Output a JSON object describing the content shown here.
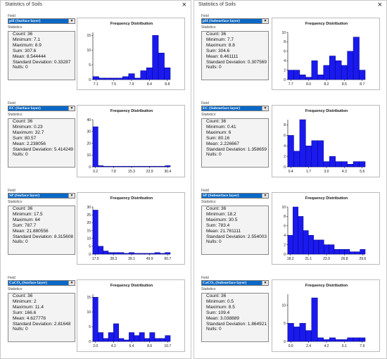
{
  "left_window": {
    "title": "Statistics of Soils",
    "close": "×",
    "panels": [
      {
        "field_label": "Field",
        "field_value": "pH (Surface layer)",
        "dropdown_arrow": "▼",
        "stats_label": "Statistics:",
        "stats": [
          "Count:    36",
          "Minimum:  7.1",
          "Maximum:  8.9",
          "Sum:      307.6",
          "Mean:     8.544444",
          "Standard Deviation: 0.33287",
          "Nulls:    0"
        ],
        "chart_data": {
          "type": "bar",
          "title": "Frequency Distribution",
          "x_ticks": [
            "7.1",
            "7.5",
            "7.9",
            "8.4",
            "8.8"
          ],
          "y_ticks": [
            "0",
            "5",
            "10",
            "15"
          ],
          "ylim": [
            0,
            16
          ],
          "values": [
            1,
            0.5,
            0.5,
            0.5,
            0.5,
            1,
            2,
            0.5,
            3,
            4,
            15,
            9,
            4
          ]
        }
      },
      {
        "field_label": "Field",
        "field_value": "EC (Surface layer)",
        "dropdown_arrow": "▼",
        "stats_label": "Statistics:",
        "stats": [
          "Count:    36",
          "Minimum:  0.23",
          "Maximum:  32.7",
          "Sum:      80.57",
          "Mean:     2.238056",
          "Standard  Deviation: 5.414249",
          "Nulls:    0"
        ],
        "chart_data": {
          "type": "bar",
          "title": "Frequency Distribution",
          "x_ticks": [
            "0.2",
            "7.8",
            "15.3",
            "22.9",
            "30.4"
          ],
          "y_ticks": [
            "0",
            "10",
            "20",
            "30",
            "40"
          ],
          "ylim": [
            0,
            40
          ],
          "values": [
            34,
            1,
            0.5,
            0.5,
            0.5,
            0.5,
            0.5,
            0.5,
            0.5,
            0.5,
            0.5,
            0.5,
            0.5,
            0.5,
            1
          ]
        }
      },
      {
        "field_label": "Field",
        "field_value": "SP (Surface layer)",
        "dropdown_arrow": "▼",
        "stats_label": "Statistics:",
        "stats": [
          "Count:    36",
          "Minimum:  17.5",
          "Maximum:  64",
          "Sum:      787.7",
          "Mean:     21.880556",
          "Standard  Deviation: 8.315608",
          "Nulls:    0"
        ],
        "chart_data": {
          "type": "bar",
          "title": "Frequency Distribution",
          "x_ticks": [
            "17.5",
            "28.3",
            "39.1",
            "49.9",
            "60.7"
          ],
          "y_ticks": [
            "0",
            "5",
            "10",
            "15",
            "20",
            "25",
            "30"
          ],
          "ylim": [
            0,
            30
          ],
          "values": [
            28,
            5,
            2,
            1,
            1,
            1,
            0.5,
            1,
            0.5,
            0.5,
            0.5,
            0.5,
            1,
            0.5,
            1
          ]
        }
      },
      {
        "field_label": "Field",
        "field_value": "CaCO₃ (Surface layer)",
        "dropdown_arrow": "▼",
        "stats_label": "Statistics:",
        "stats": [
          "Count:    36",
          "Minimum:  2",
          "Maximum:  11.4",
          "Sum:      166.6",
          "Mean:     4.627778",
          "Standard  Deviation: 2.81648",
          "Nulls:    0"
        ],
        "chart_data": {
          "type": "bar",
          "title": "Frequency Distribution",
          "x_ticks": [
            "2.0",
            "4.2",
            "6.4",
            "8.6",
            "10.7"
          ],
          "y_ticks": [
            "0",
            "5",
            "10",
            "15"
          ],
          "ylim": [
            0,
            16
          ],
          "values": [
            15,
            3,
            1,
            3,
            6,
            1,
            0.5,
            3,
            2,
            3,
            1,
            3,
            1,
            1,
            2
          ]
        }
      }
    ]
  },
  "right_window": {
    "title": "Statistics of Soils",
    "close": "×",
    "panels": [
      {
        "field_label": "Field",
        "field_value": "pH (Subsurface layer)",
        "dropdown_arrow": "▼",
        "stats_label": "Statistics:",
        "stats": [
          "Count:    36",
          "Minimum:  7.7",
          "Maximum:  8.8",
          "Sum:      304.6",
          "Mean:     8.461111",
          "Standard Deviation: 0.307569",
          "Nulls:    0"
        ],
        "chart_data": {
          "type": "bar",
          "title": "Frequency Distribution",
          "x_ticks": [
            "7.7",
            "8.0",
            "8.2",
            "8.5",
            "8.7"
          ],
          "y_ticks": [
            "0",
            "2",
            "4",
            "6",
            "8",
            "10"
          ],
          "ylim": [
            0,
            10
          ],
          "values": [
            2,
            2,
            1,
            0.5,
            4,
            1,
            3,
            5,
            4,
            3,
            6,
            9,
            2
          ]
        }
      },
      {
        "field_label": "Field",
        "field_value": "EC (Subsurface layer)",
        "dropdown_arrow": "▼",
        "stats_label": "Statistics:",
        "stats": [
          "Count:    36",
          "Minimum:  0.41",
          "Maximum:  6",
          "Sum:      80.16",
          "Mean:     2.226667",
          "Standard  Deviation: 1.358659",
          "Nulls:    0"
        ],
        "chart_data": {
          "type": "bar",
          "title": "Frequency Distribution",
          "x_ticks": [
            "0.4",
            "1.7",
            "3.0",
            "4.3",
            "5.6"
          ],
          "y_ticks": [
            "0",
            "2",
            "4",
            "6",
            "8"
          ],
          "ylim": [
            0,
            9
          ],
          "values": [
            6,
            3,
            9,
            4,
            5,
            5,
            1,
            2,
            1,
            1,
            0.5,
            1,
            1
          ]
        }
      },
      {
        "field_label": "Field",
        "field_value": "SP (Subsurface layer)",
        "dropdown_arrow": "▼",
        "stats_label": "Statistics:",
        "stats": [
          "Count:    36",
          "Minimum:  18.2",
          "Maximum:  30.5",
          "Sum:      783.4",
          "Mean:     21.761111",
          "Standard  Deviation: 2.554003",
          "Nulls:    0"
        ],
        "chart_data": {
          "type": "bar",
          "title": "Frequency Distribution",
          "x_ticks": [
            "18.2",
            "21.1",
            "23.9",
            "26.8",
            "29.6"
          ],
          "y_ticks": [
            "0",
            "2",
            "4",
            "6",
            "8",
            "10"
          ],
          "ylim": [
            0,
            10
          ],
          "values": [
            4,
            10,
            8,
            5,
            4,
            3,
            3,
            2,
            2,
            1,
            1,
            1,
            0.5,
            0.5,
            1
          ]
        }
      },
      {
        "field_label": "Field",
        "field_value": "CaCO₃ (Subsurface layer)",
        "dropdown_arrow": "▼",
        "stats_label": "Statistics:",
        "stats": [
          "Count:    36",
          "Minimum:  0.5",
          "Maximum:  8.5",
          "Sum:      109.4",
          "Mean:     3.038889",
          "Standard Deviation: 1.864921",
          "Nulls:    0"
        ],
        "chart_data": {
          "type": "bar",
          "title": "Frequency Distribution",
          "x_ticks": [
            "0.5",
            "2.4",
            "4.2",
            "6.1",
            "7.9"
          ],
          "y_ticks": [
            "0",
            "5",
            "10"
          ],
          "ylim": [
            0,
            13
          ],
          "values": [
            5,
            4,
            5,
            3,
            12,
            1,
            0.5,
            1,
            0.5,
            0.5,
            1,
            1,
            1
          ]
        }
      }
    ]
  },
  "colors": {
    "bar_fill": "#1a1aee",
    "bar_stroke": "#000080",
    "field_highlight": "#0a69c7"
  }
}
